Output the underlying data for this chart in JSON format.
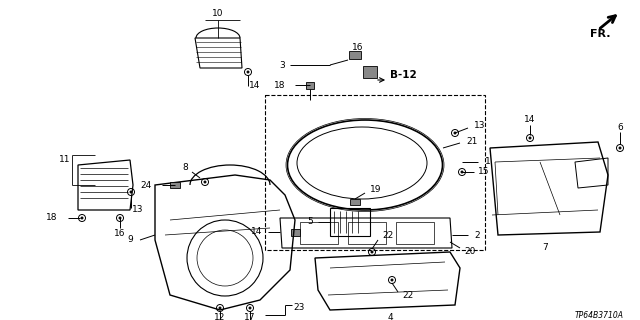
{
  "bg_color": "#ffffff",
  "diagram_code": "TP64B3710A",
  "fr_label": "FR.",
  "b12_label": "B-12",
  "line_color": "#000000",
  "label_color": "#000000",
  "fig_w": 6.4,
  "fig_h": 3.2,
  "dpi": 100
}
